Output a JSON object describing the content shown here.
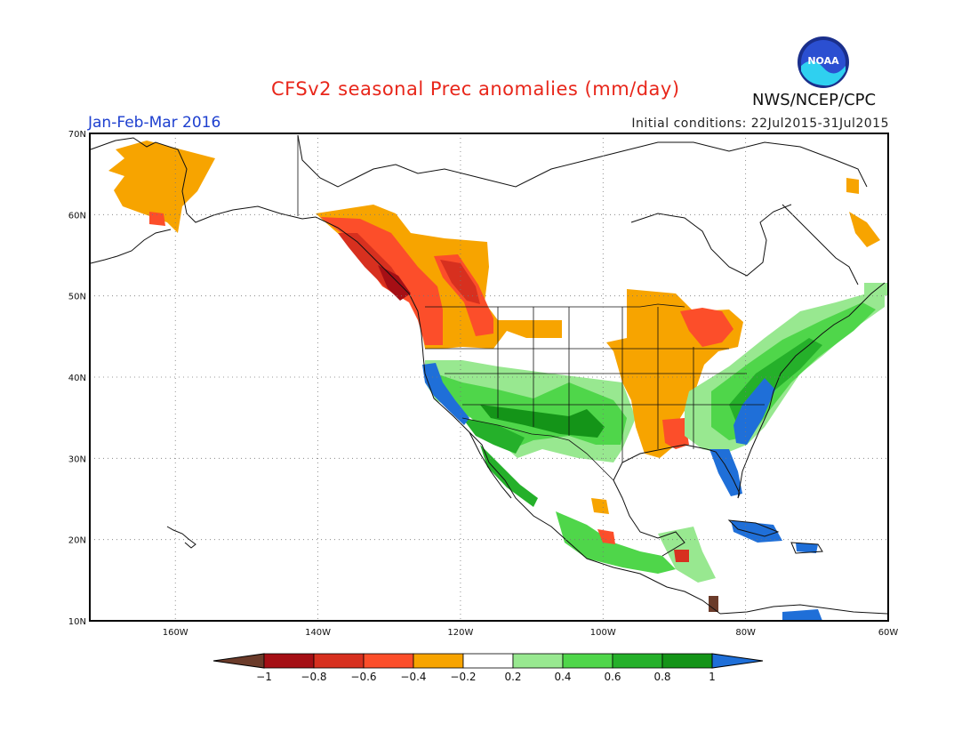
{
  "header": {
    "title": "CFSv2 seasonal Prec anomalies (mm/day)",
    "season": "Jan-Feb-Mar 2016",
    "initial_conditions": "Initial conditions: 22Jul2015-31Jul2015",
    "agency": "NWS/NCEP/CPC",
    "logo_text": "NOAA"
  },
  "map": {
    "region": "North America",
    "lon_range": [
      -172,
      -60
    ],
    "lat_range": [
      10,
      70
    ],
    "lat_ticks": [
      "70N",
      "60N",
      "50N",
      "40N",
      "30N",
      "20N",
      "10N"
    ],
    "lon_ticks": [
      "160W",
      "140W",
      "120W",
      "100W",
      "80W",
      "60W"
    ],
    "grid": "dotted"
  },
  "colorbar": {
    "labels": [
      "-1",
      "-0.8",
      "-0.6",
      "-0.4",
      "-0.2",
      "0.2",
      "0.4",
      "0.6",
      "0.8",
      "1"
    ],
    "colors": {
      "lt_-1": "#6b3b2a",
      "-1_-0.8": "#a50f15",
      "-0.8_-0.6": "#d7301f",
      "-0.6_-0.4": "#fc4e2a",
      "-0.4_-0.2": "#f7a400",
      "-0.2_0.2": "#ffffff",
      "0.2_0.4": "#98e890",
      "0.4_0.6": "#4fd64a",
      "0.6_0.8": "#25b02a",
      "0.8_1": "#149418",
      "gt_1": "#1f6fd8"
    }
  }
}
